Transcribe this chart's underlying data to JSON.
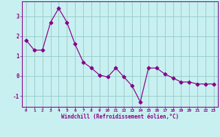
{
  "x": [
    0,
    1,
    2,
    3,
    4,
    5,
    6,
    7,
    8,
    9,
    10,
    11,
    12,
    13,
    14,
    15,
    16,
    17,
    18,
    19,
    20,
    21,
    22,
    23
  ],
  "y": [
    1.8,
    1.3,
    1.3,
    2.7,
    3.4,
    2.7,
    1.6,
    0.7,
    0.4,
    0.05,
    -0.05,
    0.4,
    -0.05,
    -0.5,
    -1.3,
    0.4,
    0.4,
    0.1,
    -0.1,
    -0.3,
    -0.3,
    -0.4,
    -0.4,
    -0.4
  ],
  "line_color": "#880088",
  "marker": "D",
  "marker_size": 2.5,
  "bg_color": "#c8f0f0",
  "grid_color": "#99cccc",
  "xlabel": "Windchill (Refroidissement éolien,°C)",
  "xlabel_color": "#880088",
  "tick_color": "#880088",
  "spine_color": "#880088",
  "ylim": [
    -1.55,
    3.75
  ],
  "xlim": [
    -0.5,
    23.5
  ],
  "yticks": [
    -1,
    0,
    1,
    2,
    3
  ],
  "xticks": [
    0,
    1,
    2,
    3,
    4,
    5,
    6,
    7,
    8,
    9,
    10,
    11,
    12,
    13,
    14,
    15,
    16,
    17,
    18,
    19,
    20,
    21,
    22,
    23
  ]
}
